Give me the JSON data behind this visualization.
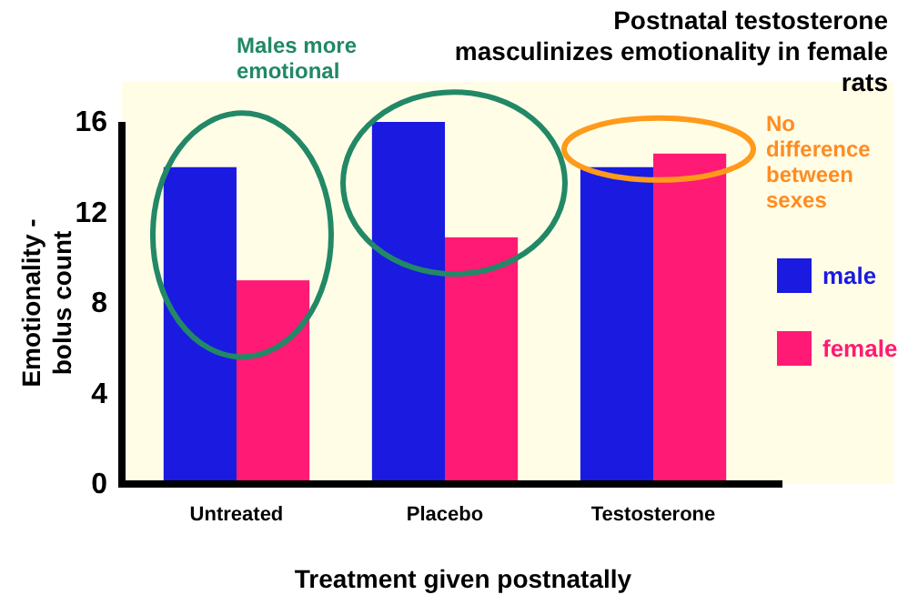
{
  "chart_data": {
    "type": "bar",
    "title": "Postnatal testosterone masculinizes emotionality in female rats",
    "xlabel": "Treatment given postnatally",
    "ylabel": "Emotionality - bolus count",
    "categories": [
      "Untreated",
      "Placebo",
      "Testosterone"
    ],
    "series": [
      {
        "name": "male",
        "color": "#1a1ae0",
        "values": [
          14,
          16,
          14
        ]
      },
      {
        "name": "female",
        "color": "#ff1a75",
        "values": [
          9,
          10.9,
          14.6
        ]
      }
    ],
    "ylim": [
      0,
      16
    ],
    "yticks": [
      0,
      4,
      8,
      12,
      16
    ],
    "grid": false,
    "legend": "right",
    "annotations": [
      "Males more emotional",
      "No difference between sexes"
    ]
  }
}
